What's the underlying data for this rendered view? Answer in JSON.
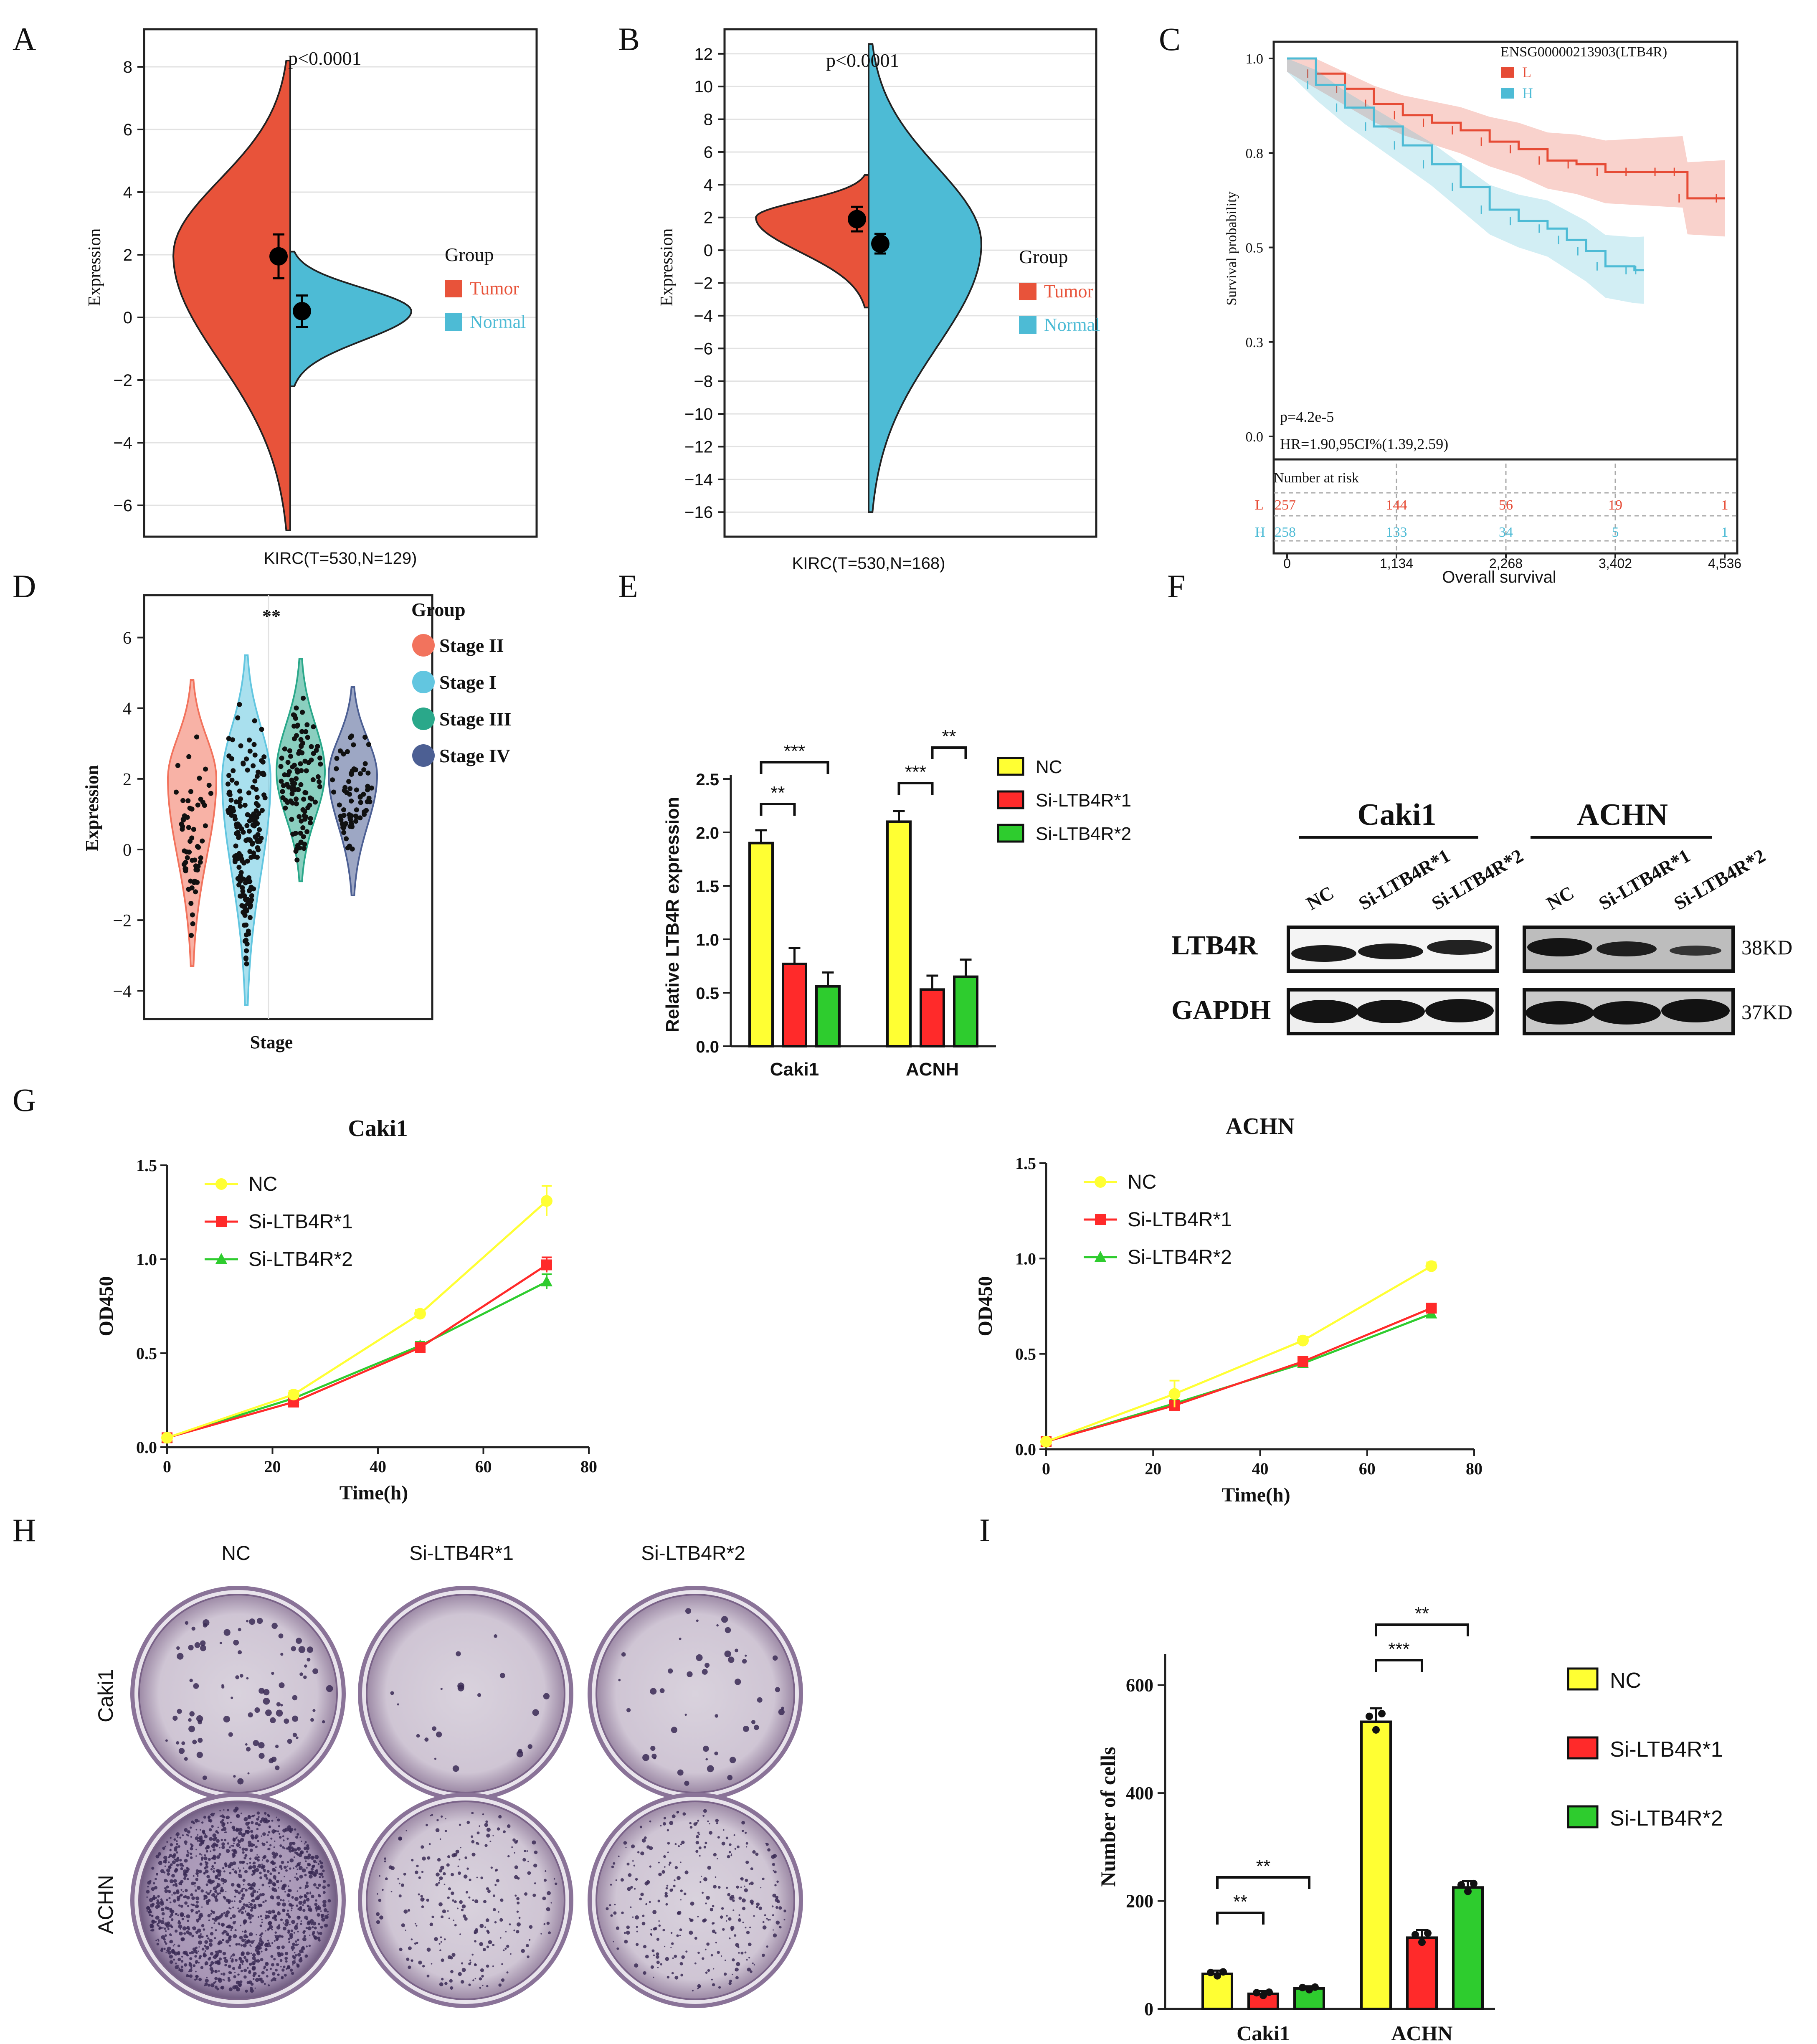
{
  "colors": {
    "tumor": "#e8533a",
    "normal": "#4dbbd5",
    "low": "#e64b35",
    "high": "#4dbbd5",
    "stage2": "#f2735d",
    "stage1": "#62c6e0",
    "stage3": "#2aa88a",
    "stage4": "#4c5f93",
    "nc": "#ffff33",
    "si1": "#ff2a2a",
    "si2": "#2ecc2e"
  },
  "panels": {
    "A": "A",
    "B": "B",
    "C": "C",
    "D": "D",
    "E": "E",
    "F": "F",
    "G": "G",
    "H": "H",
    "I": "I"
  },
  "chart_data": [
    {
      "id": "A",
      "type": "violin",
      "title": "p<0.0001",
      "xlabel": "KIRC(T=530,N=129)",
      "ylabel": "Expression",
      "ylim": [
        -7,
        9.2
      ],
      "yticks": [
        -6,
        -4,
        -2,
        0,
        2,
        4,
        6,
        8
      ],
      "legend_title": "Group",
      "legend": [
        "Tumor",
        "Normal"
      ],
      "series": [
        {
          "name": "Tumor",
          "mean": 1.95,
          "err": 0.7,
          "range": [
            -6.8,
            8.2
          ],
          "mode": 2.0
        },
        {
          "name": "Normal",
          "mean": 0.2,
          "err": 0.5,
          "range": [
            -2.2,
            2.1
          ],
          "mode": 0.2
        }
      ]
    },
    {
      "id": "B",
      "type": "violin",
      "title": "p<0.0001",
      "xlabel": "KIRC(T=530,N=168)",
      "ylabel": "Expression",
      "ylim": [
        -17.5,
        13.5
      ],
      "yticks": [
        -16,
        -14,
        -12,
        -10,
        -8,
        -6,
        -4,
        -2,
        0,
        2,
        4,
        6,
        8,
        10,
        12
      ],
      "legend_title": "Group",
      "legend": [
        "Tumor",
        "Normal"
      ],
      "series": [
        {
          "name": "Tumor",
          "mean": 1.9,
          "err": 0.75,
          "range": [
            -3.5,
            4.6
          ],
          "mode": 2.0
        },
        {
          "name": "Normal",
          "mean": 0.4,
          "err": 0.6,
          "range": [
            -16,
            12.6
          ],
          "mode": 0.4
        }
      ]
    },
    {
      "id": "C",
      "type": "survival",
      "gene": "ENSG00000213903(LTB4R)",
      "ylabel": "Survival probability",
      "xlabel": "Overall survival",
      "ytick_labels": [
        "0.0",
        "0.3",
        "0.5",
        "0.8",
        "1.0"
      ],
      "yticks": [
        0,
        0.25,
        0.5,
        0.75,
        1.0
      ],
      "xticks": [
        0,
        1134,
        2268,
        3402,
        4536
      ],
      "xtick_labels": [
        "0",
        "1,134",
        "2,268",
        "3,402",
        "4,536"
      ],
      "p_text": "p=4.2e-5",
      "hr_text": "HR=1.90,95CI%(1.39,2.59)",
      "risk_title": "Number at risk",
      "series": [
        {
          "name": "L",
          "x": [
            0,
            300,
            600,
            900,
            1200,
            1500,
            1800,
            2100,
            2400,
            2700,
            3000,
            3300,
            3600,
            3900,
            4100,
            4150,
            4536
          ],
          "y": [
            1.0,
            0.96,
            0.92,
            0.88,
            0.85,
            0.83,
            0.81,
            0.78,
            0.76,
            0.73,
            0.72,
            0.7,
            0.7,
            0.7,
            0.7,
            0.63,
            0.63
          ],
          "risk": [
            "257",
            "144",
            "56",
            "19",
            "1"
          ]
        },
        {
          "name": "H",
          "x": [
            0,
            300,
            600,
            900,
            1200,
            1500,
            1800,
            2100,
            2400,
            2700,
            2900,
            3100,
            3300,
            3600,
            3700
          ],
          "y": [
            1.0,
            0.93,
            0.87,
            0.82,
            0.77,
            0.72,
            0.66,
            0.6,
            0.57,
            0.55,
            0.52,
            0.49,
            0.45,
            0.44,
            0.44
          ],
          "risk": [
            "258",
            "133",
            "34",
            "5",
            "1"
          ]
        }
      ]
    },
    {
      "id": "D",
      "type": "violin_strip",
      "xlabel": "Stage",
      "ylabel": "Expression",
      "annotation": "**",
      "ylim": [
        -4.8,
        7.2
      ],
      "yticks": [
        -4,
        -2,
        0,
        2,
        4,
        6
      ],
      "legend_title": "Group",
      "series": [
        {
          "name": "Stage II",
          "median": 2.0,
          "range": [
            -3.3,
            4.8
          ]
        },
        {
          "name": "Stage I",
          "median": 2.0,
          "range": [
            -4.4,
            5.5
          ]
        },
        {
          "name": "Stage III",
          "median": 2.2,
          "range": [
            -0.9,
            5.4
          ]
        },
        {
          "name": "Stage IV",
          "median": 2.1,
          "range": [
            -1.3,
            4.6
          ]
        }
      ]
    },
    {
      "id": "E",
      "type": "bar",
      "ylabel": "Relative LTB4R expression",
      "categories": [
        "Caki1",
        "ACNH"
      ],
      "ylim": [
        0,
        2.5
      ],
      "yticks": [
        0.0,
        0.5,
        1.0,
        1.5,
        2.0,
        2.5
      ],
      "ytick_labels": [
        "0.0",
        "0.5",
        "1.0",
        "1.5",
        "2.0",
        "2.5"
      ],
      "series": [
        {
          "name": "NC",
          "values": [
            1.9,
            2.1
          ],
          "err": [
            0.12,
            0.1
          ]
        },
        {
          "name": "Si-LTB4R*1",
          "values": [
            0.77,
            0.53
          ],
          "err": [
            0.15,
            0.13
          ]
        },
        {
          "name": "Si-LTB4R*2",
          "values": [
            0.56,
            0.65
          ],
          "err": [
            0.13,
            0.16
          ]
        }
      ],
      "significance": [
        "**",
        "***",
        "***",
        "**"
      ]
    },
    {
      "id": "G1",
      "type": "line",
      "title": "Caki1",
      "xlabel": "Time(h)",
      "ylabel": "OD450",
      "xlim": [
        0,
        80
      ],
      "ylim": [
        0,
        1.5
      ],
      "xticks": [
        0,
        20,
        40,
        60,
        80
      ],
      "yticks": [
        0.0,
        0.5,
        1.0,
        1.5
      ],
      "ytick_labels": [
        "0.0",
        "0.5",
        "1.0",
        "1.5"
      ],
      "x": [
        0,
        24,
        48,
        72
      ],
      "series": [
        {
          "name": "NC",
          "values": [
            0.05,
            0.28,
            0.71,
            1.31
          ],
          "err": [
            0.01,
            0.02,
            0.02,
            0.08
          ]
        },
        {
          "name": "Si-LTB4R*1",
          "values": [
            0.05,
            0.24,
            0.53,
            0.97
          ],
          "err": [
            0.01,
            0.02,
            0.02,
            0.04
          ]
        },
        {
          "name": "Si-LTB4R*2",
          "values": [
            0.05,
            0.26,
            0.54,
            0.88
          ],
          "err": [
            0.01,
            0.02,
            0.02,
            0.04
          ]
        }
      ]
    },
    {
      "id": "G2",
      "type": "line",
      "title": "ACHN",
      "xlabel": "Time(h)",
      "ylabel": "OD450",
      "xlim": [
        0,
        80
      ],
      "ylim": [
        0,
        1.5
      ],
      "xticks": [
        0,
        20,
        40,
        60,
        80
      ],
      "yticks": [
        0.0,
        0.5,
        1.0,
        1.5
      ],
      "ytick_labels": [
        "0.0",
        "0.5",
        "1.0",
        "1.5"
      ],
      "x": [
        0,
        24,
        48,
        72
      ],
      "series": [
        {
          "name": "NC",
          "values": [
            0.04,
            0.29,
            0.57,
            0.96
          ],
          "err": [
            0.01,
            0.07,
            0.02,
            0.02
          ]
        },
        {
          "name": "Si-LTB4R*1",
          "values": [
            0.04,
            0.23,
            0.46,
            0.74
          ],
          "err": [
            0.01,
            0.02,
            0.02,
            0.02
          ]
        },
        {
          "name": "Si-LTB4R*2",
          "values": [
            0.04,
            0.24,
            0.45,
            0.71
          ],
          "err": [
            0.01,
            0.02,
            0.02,
            0.02
          ]
        }
      ]
    },
    {
      "id": "I",
      "type": "bar",
      "ylabel": "Number of cells",
      "categories": [
        "Caki1",
        "ACHN"
      ],
      "ylim": [
        0,
        650
      ],
      "yticks": [
        0,
        200,
        400,
        600
      ],
      "ytick_labels": [
        "0",
        "200",
        "400",
        "600"
      ],
      "series": [
        {
          "name": "NC",
          "values": [
            65,
            532
          ],
          "err": [
            6,
            25
          ]
        },
        {
          "name": "Si-LTB4R*1",
          "values": [
            28,
            132
          ],
          "err": [
            5,
            14
          ]
        },
        {
          "name": "Si-LTB4R*2",
          "values": [
            38,
            225
          ],
          "err": [
            4,
            12
          ]
        }
      ],
      "significance": [
        "**",
        "**",
        "***",
        "**"
      ]
    }
  ],
  "western": {
    "cell_lines": [
      "Caki1",
      "ACHN"
    ],
    "lanes": [
      "NC",
      "Si-LTB4R*1",
      "Si-LTB4R*2"
    ],
    "rows": [
      {
        "label": "LTB4R",
        "size": "38KD"
      },
      {
        "label": "GAPDH",
        "size": "37KD"
      }
    ]
  },
  "colony": {
    "columns": [
      "NC",
      "Si-LTB4R*1",
      "Si-LTB4R*2"
    ],
    "rows": [
      "Caki1",
      "ACHN"
    ]
  }
}
